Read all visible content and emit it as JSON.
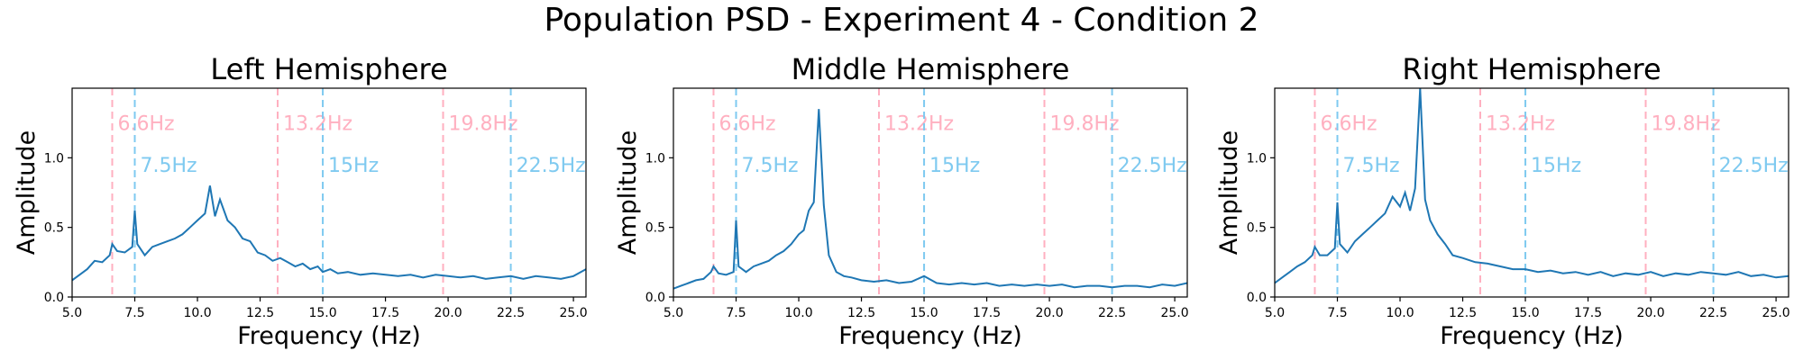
{
  "figure": {
    "title": "Population PSD - Experiment 4 - Condition 2"
  },
  "colors": {
    "line": "#1f77b4",
    "pink_marker": "#ffb0c0",
    "blue_marker": "#7fcaf0",
    "axes": "#000000"
  },
  "chart_data": [
    {
      "type": "line",
      "title": "Left Hemisphere",
      "xlabel": "Frequency (Hz)",
      "ylabel": "Amplitude",
      "xlim": [
        5.0,
        25.5
      ],
      "ylim": [
        0.0,
        1.5
      ],
      "xticks": [
        "5.0",
        "7.5",
        "10.0",
        "12.5",
        "15.0",
        "17.5",
        "20.0",
        "22.5",
        "25.0"
      ],
      "yticks": [
        "0.0",
        "0.5",
        "1.0"
      ],
      "grid": false,
      "markers": [
        {
          "x": 6.6,
          "label": "6.6Hz",
          "color": "pink"
        },
        {
          "x": 7.5,
          "label": "7.5Hz",
          "color": "blue"
        },
        {
          "x": 13.2,
          "label": "13.2Hz",
          "color": "pink"
        },
        {
          "x": 15.0,
          "label": "15Hz",
          "color": "blue"
        },
        {
          "x": 19.8,
          "label": "19.8Hz",
          "color": "pink"
        },
        {
          "x": 22.5,
          "label": "22.5Hz",
          "color": "blue"
        }
      ],
      "series": [
        {
          "x": [
            5.0,
            5.3,
            5.6,
            5.9,
            6.2,
            6.5,
            6.6,
            6.8,
            7.1,
            7.4,
            7.5,
            7.6,
            7.9,
            8.2,
            8.5,
            8.8,
            9.1,
            9.4,
            9.7,
            10.0,
            10.3,
            10.5,
            10.7,
            10.9,
            11.2,
            11.5,
            11.8,
            12.1,
            12.4,
            12.7,
            13.0,
            13.3,
            13.6,
            13.9,
            14.2,
            14.5,
            14.8,
            15.0,
            15.3,
            15.6,
            16.0,
            16.5,
            17.0,
            17.5,
            18.0,
            18.5,
            19.0,
            19.5,
            20.0,
            20.5,
            21.0,
            21.5,
            22.0,
            22.5,
            23.0,
            23.5,
            24.0,
            24.5,
            25.0,
            25.5
          ],
          "y": [
            0.12,
            0.16,
            0.2,
            0.26,
            0.25,
            0.3,
            0.38,
            0.33,
            0.32,
            0.36,
            0.62,
            0.38,
            0.3,
            0.36,
            0.38,
            0.4,
            0.42,
            0.45,
            0.5,
            0.55,
            0.6,
            0.8,
            0.58,
            0.7,
            0.55,
            0.5,
            0.42,
            0.4,
            0.32,
            0.3,
            0.26,
            0.28,
            0.25,
            0.22,
            0.24,
            0.2,
            0.22,
            0.18,
            0.2,
            0.17,
            0.18,
            0.16,
            0.17,
            0.16,
            0.15,
            0.16,
            0.14,
            0.16,
            0.15,
            0.14,
            0.15,
            0.13,
            0.14,
            0.15,
            0.13,
            0.15,
            0.14,
            0.13,
            0.15,
            0.2
          ]
        }
      ]
    },
    {
      "type": "line",
      "title": "Middle Hemisphere",
      "xlabel": "Frequency (Hz)",
      "ylabel": "Amplitude",
      "xlim": [
        5.0,
        25.5
      ],
      "ylim": [
        0.0,
        1.5
      ],
      "xticks": [
        "5.0",
        "7.5",
        "10.0",
        "12.5",
        "15.0",
        "17.5",
        "20.0",
        "22.5",
        "25.0"
      ],
      "yticks": [
        "0.0",
        "0.5",
        "1.0"
      ],
      "grid": false,
      "markers": [
        {
          "x": 6.6,
          "label": "6.6Hz",
          "color": "pink"
        },
        {
          "x": 7.5,
          "label": "7.5Hz",
          "color": "blue"
        },
        {
          "x": 13.2,
          "label": "13.2Hz",
          "color": "pink"
        },
        {
          "x": 15.0,
          "label": "15Hz",
          "color": "blue"
        },
        {
          "x": 19.8,
          "label": "19.8Hz",
          "color": "pink"
        },
        {
          "x": 22.5,
          "label": "22.5Hz",
          "color": "blue"
        }
      ],
      "series": [
        {
          "x": [
            5.0,
            5.3,
            5.6,
            5.9,
            6.2,
            6.5,
            6.6,
            6.8,
            7.1,
            7.4,
            7.5,
            7.6,
            7.9,
            8.2,
            8.5,
            8.8,
            9.1,
            9.4,
            9.7,
            10.0,
            10.2,
            10.4,
            10.6,
            10.8,
            11.0,
            11.2,
            11.5,
            11.8,
            12.1,
            12.5,
            13.0,
            13.5,
            14.0,
            14.5,
            15.0,
            15.5,
            16.0,
            16.5,
            17.0,
            17.5,
            18.0,
            18.5,
            19.0,
            19.5,
            20.0,
            20.5,
            21.0,
            21.5,
            22.0,
            22.5,
            23.0,
            23.5,
            24.0,
            24.5,
            25.0,
            25.5
          ],
          "y": [
            0.06,
            0.08,
            0.1,
            0.12,
            0.13,
            0.18,
            0.22,
            0.17,
            0.16,
            0.18,
            0.55,
            0.22,
            0.18,
            0.22,
            0.24,
            0.26,
            0.3,
            0.33,
            0.38,
            0.45,
            0.48,
            0.62,
            0.68,
            1.35,
            0.66,
            0.3,
            0.18,
            0.15,
            0.14,
            0.12,
            0.11,
            0.12,
            0.1,
            0.11,
            0.15,
            0.1,
            0.09,
            0.1,
            0.09,
            0.1,
            0.08,
            0.09,
            0.08,
            0.09,
            0.08,
            0.09,
            0.07,
            0.08,
            0.08,
            0.07,
            0.08,
            0.08,
            0.07,
            0.09,
            0.08,
            0.1
          ]
        }
      ]
    },
    {
      "type": "line",
      "title": "Right Hemisphere",
      "xlabel": "Frequency (Hz)",
      "ylabel": "Amplitude",
      "xlim": [
        5.0,
        25.5
      ],
      "ylim": [
        0.0,
        1.5
      ],
      "xticks": [
        "5.0",
        "7.5",
        "10.0",
        "12.5",
        "15.0",
        "17.5",
        "20.0",
        "22.5",
        "25.0"
      ],
      "yticks": [
        "0.0",
        "0.5",
        "1.0"
      ],
      "grid": false,
      "markers": [
        {
          "x": 6.6,
          "label": "6.6Hz",
          "color": "pink"
        },
        {
          "x": 7.5,
          "label": "7.5Hz",
          "color": "blue"
        },
        {
          "x": 13.2,
          "label": "13.2Hz",
          "color": "pink"
        },
        {
          "x": 15.0,
          "label": "15Hz",
          "color": "blue"
        },
        {
          "x": 19.8,
          "label": "19.8Hz",
          "color": "pink"
        },
        {
          "x": 22.5,
          "label": "22.5Hz",
          "color": "blue"
        }
      ],
      "series": [
        {
          "x": [
            5.0,
            5.3,
            5.6,
            5.9,
            6.2,
            6.5,
            6.6,
            6.8,
            7.1,
            7.4,
            7.5,
            7.6,
            7.9,
            8.2,
            8.5,
            8.8,
            9.1,
            9.4,
            9.7,
            10.0,
            10.2,
            10.4,
            10.6,
            10.8,
            11.0,
            11.2,
            11.5,
            11.8,
            12.1,
            12.5,
            13.0,
            13.5,
            14.0,
            14.5,
            15.0,
            15.5,
            16.0,
            16.5,
            17.0,
            17.5,
            18.0,
            18.5,
            19.0,
            19.5,
            20.0,
            20.5,
            21.0,
            21.5,
            22.0,
            22.5,
            23.0,
            23.5,
            24.0,
            24.5,
            25.0,
            25.5
          ],
          "y": [
            0.1,
            0.14,
            0.18,
            0.22,
            0.25,
            0.3,
            0.36,
            0.3,
            0.3,
            0.35,
            0.68,
            0.38,
            0.32,
            0.4,
            0.45,
            0.5,
            0.55,
            0.6,
            0.72,
            0.65,
            0.75,
            0.62,
            0.78,
            1.5,
            0.7,
            0.55,
            0.45,
            0.38,
            0.3,
            0.28,
            0.25,
            0.24,
            0.22,
            0.2,
            0.2,
            0.18,
            0.19,
            0.17,
            0.18,
            0.16,
            0.18,
            0.15,
            0.17,
            0.16,
            0.18,
            0.15,
            0.17,
            0.16,
            0.18,
            0.17,
            0.16,
            0.18,
            0.15,
            0.16,
            0.14,
            0.15
          ]
        }
      ]
    }
  ]
}
